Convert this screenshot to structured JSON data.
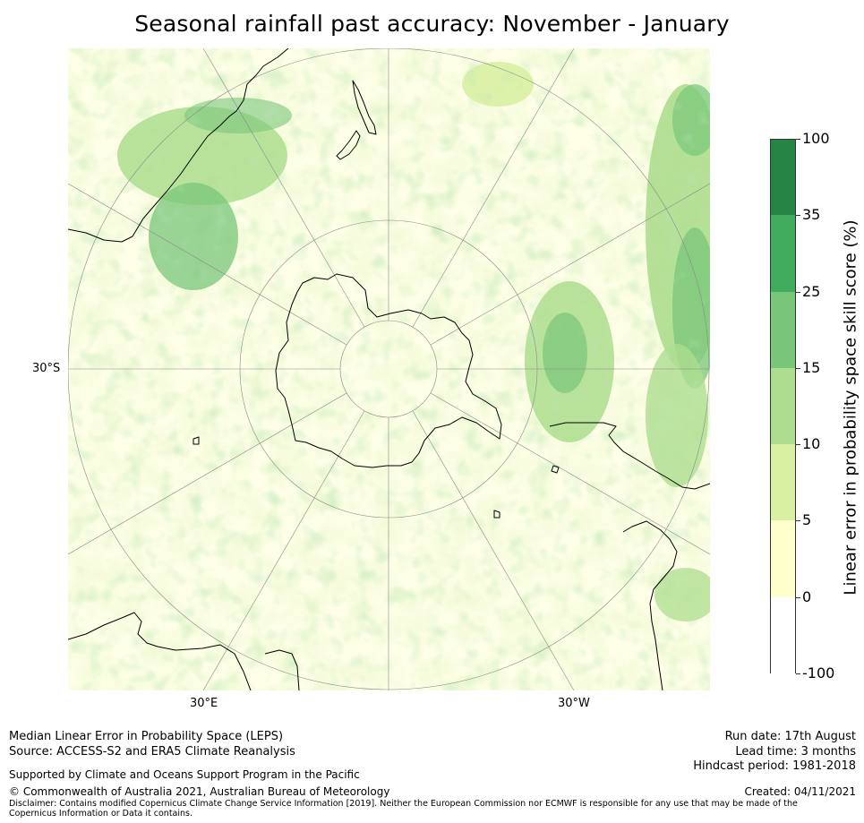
{
  "title": "Seasonal rainfall past accuracy: November - January",
  "map": {
    "projection": "south-polar-stereographic",
    "graticule_labels": {
      "lat": "30°S",
      "lon_east": "30°E",
      "lon_west": "30°W"
    },
    "land_outline_color": "#000000",
    "grid_color": "#8a8a8a"
  },
  "colorbar": {
    "title": "Linear error in probability space skill score (%)",
    "ticks": [
      "100",
      "35",
      "25",
      "15",
      "10",
      "5",
      "0",
      "-100"
    ],
    "bins": [
      {
        "from": "35",
        "to": "100",
        "color": "#238443"
      },
      {
        "from": "25",
        "to": "35",
        "color": "#41ab5d"
      },
      {
        "from": "15",
        "to": "25",
        "color": "#78c679"
      },
      {
        "from": "10",
        "to": "15",
        "color": "#addd8e"
      },
      {
        "from": "5",
        "to": "10",
        "color": "#d9f0a3"
      },
      {
        "from": "0",
        "to": "5",
        "color": "#ffffcc"
      },
      {
        "from": "-100",
        "to": "0",
        "color": "#ffffff"
      }
    ]
  },
  "footer": {
    "left": {
      "line1": "Median Linear Error in Probability Space (LEPS)",
      "line2": "Source: ACCESS-S2 and ERA5 Climate Reanalysis",
      "support": "Supported by Climate and Oceans Support Program in the Pacific",
      "copyright": "© Commonwealth of Australia 2021, Australian Bureau of Meteorology",
      "disclaimer": "Disclaimer: Contains modified Copernicus Climate Change Service Information [2019]. Neither the European Commission nor ECMWF is responsible for any use that may be made of the Copernicus Information or Data it contains."
    },
    "right": {
      "run_date": "Run date: 17th August",
      "lead_time": "Lead time: 3 months",
      "hindcast": "Hindcast period: 1981-2018",
      "created": "Created: 04/11/2021"
    }
  }
}
